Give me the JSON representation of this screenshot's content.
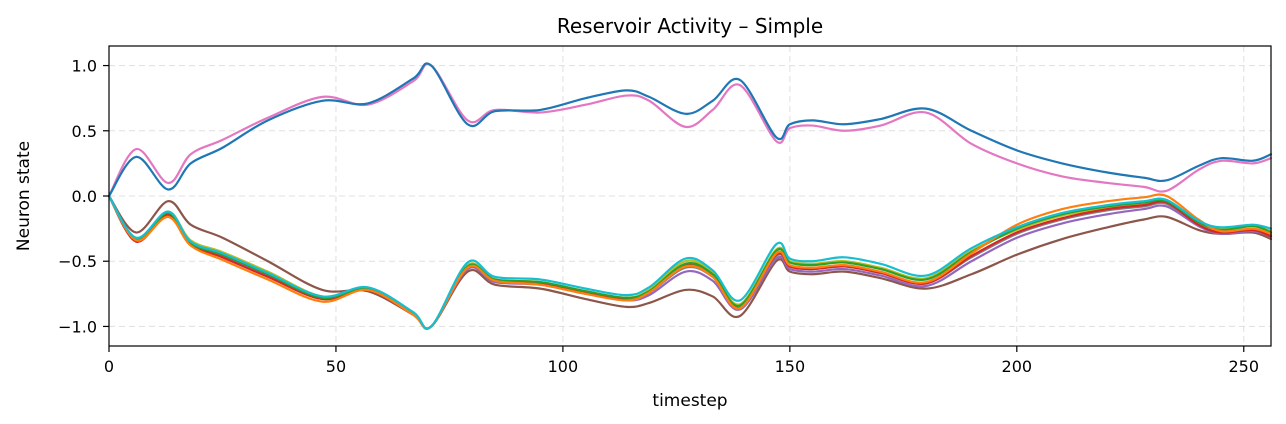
{
  "chart_data": {
    "type": "line",
    "title": "Reservoir Activity – Simple",
    "xlabel": "timestep",
    "ylabel": "Neuron state",
    "xlim": [
      0,
      256
    ],
    "ylim": [
      -1.15,
      1.15
    ],
    "xticks": [
      0,
      50,
      100,
      150,
      200,
      250
    ],
    "xtick_labels": [
      "0",
      "50",
      "100",
      "150",
      "200",
      "250"
    ],
    "yticks": [
      -1.0,
      -0.5,
      0.0,
      0.5,
      1.0
    ],
    "ytick_labels": [
      "−1.0",
      "−0.5",
      "0.0",
      "0.5",
      "1.0"
    ],
    "grid": true,
    "x": [
      0,
      6,
      13,
      18,
      25,
      35,
      47,
      57,
      67,
      71,
      79,
      85,
      95,
      105,
      114,
      119,
      127,
      133,
      139,
      147,
      150,
      155,
      162,
      170,
      180,
      190,
      200,
      210,
      220,
      228,
      233,
      240,
      245,
      252,
      256
    ],
    "series": [
      {
        "color": "#1f77b4",
        "values": [
          0.0,
          0.3,
          0.05,
          0.25,
          0.37,
          0.58,
          0.73,
          0.71,
          0.9,
          1.0,
          0.55,
          0.65,
          0.66,
          0.75,
          0.81,
          0.76,
          0.63,
          0.73,
          0.89,
          0.45,
          0.55,
          0.58,
          0.55,
          0.59,
          0.67,
          0.5,
          0.35,
          0.25,
          0.18,
          0.14,
          0.12,
          0.23,
          0.29,
          0.27,
          0.32
        ]
      },
      {
        "color": "#e377c2",
        "values": [
          0.0,
          0.36,
          0.1,
          0.32,
          0.43,
          0.6,
          0.76,
          0.7,
          0.88,
          1.0,
          0.58,
          0.66,
          0.64,
          0.7,
          0.77,
          0.73,
          0.53,
          0.66,
          0.85,
          0.42,
          0.52,
          0.54,
          0.5,
          0.54,
          0.64,
          0.4,
          0.25,
          0.15,
          0.1,
          0.07,
          0.04,
          0.2,
          0.27,
          0.25,
          0.29
        ]
      },
      {
        "color": "#ff7f0e",
        "values": [
          0.0,
          -0.34,
          -0.16,
          -0.38,
          -0.49,
          -0.64,
          -0.81,
          -0.72,
          -0.91,
          -1.0,
          -0.55,
          -0.65,
          -0.68,
          -0.75,
          -0.8,
          -0.74,
          -0.54,
          -0.62,
          -0.86,
          -0.44,
          -0.53,
          -0.55,
          -0.53,
          -0.58,
          -0.66,
          -0.44,
          -0.22,
          -0.1,
          -0.04,
          -0.01,
          0.0,
          -0.18,
          -0.27,
          -0.25,
          -0.29
        ]
      },
      {
        "color": "#2ca02c",
        "values": [
          0.0,
          -0.33,
          -0.13,
          -0.36,
          -0.45,
          -0.6,
          -0.78,
          -0.71,
          -0.9,
          -1.0,
          -0.54,
          -0.64,
          -0.66,
          -0.73,
          -0.78,
          -0.73,
          -0.52,
          -0.6,
          -0.84,
          -0.42,
          -0.51,
          -0.53,
          -0.51,
          -0.56,
          -0.64,
          -0.43,
          -0.25,
          -0.14,
          -0.08,
          -0.05,
          -0.04,
          -0.2,
          -0.26,
          -0.23,
          -0.28
        ]
      },
      {
        "color": "#d62728",
        "values": [
          0.0,
          -0.35,
          -0.14,
          -0.37,
          -0.47,
          -0.62,
          -0.79,
          -0.72,
          -0.91,
          -1.0,
          -0.55,
          -0.65,
          -0.67,
          -0.74,
          -0.79,
          -0.74,
          -0.53,
          -0.61,
          -0.85,
          -0.45,
          -0.54,
          -0.56,
          -0.54,
          -0.59,
          -0.67,
          -0.46,
          -0.28,
          -0.17,
          -0.1,
          -0.07,
          -0.05,
          -0.22,
          -0.28,
          -0.26,
          -0.31
        ]
      },
      {
        "color": "#17becf",
        "values": [
          0.0,
          -0.32,
          -0.12,
          -0.35,
          -0.44,
          -0.59,
          -0.77,
          -0.7,
          -0.89,
          -1.0,
          -0.51,
          -0.62,
          -0.64,
          -0.71,
          -0.76,
          -0.7,
          -0.48,
          -0.57,
          -0.8,
          -0.37,
          -0.48,
          -0.5,
          -0.47,
          -0.52,
          -0.61,
          -0.4,
          -0.24,
          -0.13,
          -0.07,
          -0.04,
          -0.03,
          -0.19,
          -0.24,
          -0.22,
          -0.25
        ]
      },
      {
        "color": "#bcbd22",
        "values": [
          0.0,
          -0.33,
          -0.12,
          -0.34,
          -0.43,
          -0.58,
          -0.77,
          -0.71,
          -0.9,
          -1.0,
          -0.53,
          -0.64,
          -0.66,
          -0.73,
          -0.78,
          -0.72,
          -0.5,
          -0.59,
          -0.83,
          -0.41,
          -0.5,
          -0.52,
          -0.5,
          -0.55,
          -0.63,
          -0.42,
          -0.26,
          -0.15,
          -0.09,
          -0.06,
          -0.05,
          -0.2,
          -0.25,
          -0.23,
          -0.27
        ]
      },
      {
        "color": "#9467bd",
        "values": [
          0.0,
          -0.34,
          -0.15,
          -0.37,
          -0.46,
          -0.61,
          -0.78,
          -0.72,
          -0.9,
          -1.0,
          -0.56,
          -0.66,
          -0.68,
          -0.75,
          -0.8,
          -0.76,
          -0.58,
          -0.65,
          -0.87,
          -0.48,
          -0.56,
          -0.58,
          -0.56,
          -0.61,
          -0.69,
          -0.5,
          -0.32,
          -0.21,
          -0.14,
          -0.1,
          -0.08,
          -0.23,
          -0.29,
          -0.27,
          -0.31
        ]
      },
      {
        "color": "#7f7f7f",
        "values": [
          0.0,
          -0.33,
          -0.13,
          -0.35,
          -0.45,
          -0.6,
          -0.78,
          -0.71,
          -0.9,
          -1.0,
          -0.55,
          -0.65,
          -0.67,
          -0.74,
          -0.79,
          -0.74,
          -0.55,
          -0.62,
          -0.85,
          -0.46,
          -0.54,
          -0.56,
          -0.54,
          -0.59,
          -0.67,
          -0.47,
          -0.29,
          -0.18,
          -0.11,
          -0.08,
          -0.06,
          -0.22,
          -0.28,
          -0.26,
          -0.3
        ]
      },
      {
        "color": "#8c564b",
        "values": [
          0.0,
          -0.28,
          -0.04,
          -0.22,
          -0.32,
          -0.5,
          -0.72,
          -0.73,
          -0.91,
          -1.0,
          -0.58,
          -0.68,
          -0.71,
          -0.79,
          -0.85,
          -0.82,
          -0.72,
          -0.77,
          -0.92,
          -0.5,
          -0.58,
          -0.6,
          -0.58,
          -0.63,
          -0.71,
          -0.6,
          -0.45,
          -0.33,
          -0.24,
          -0.18,
          -0.16,
          -0.26,
          -0.29,
          -0.28,
          -0.33
        ]
      }
    ]
  }
}
